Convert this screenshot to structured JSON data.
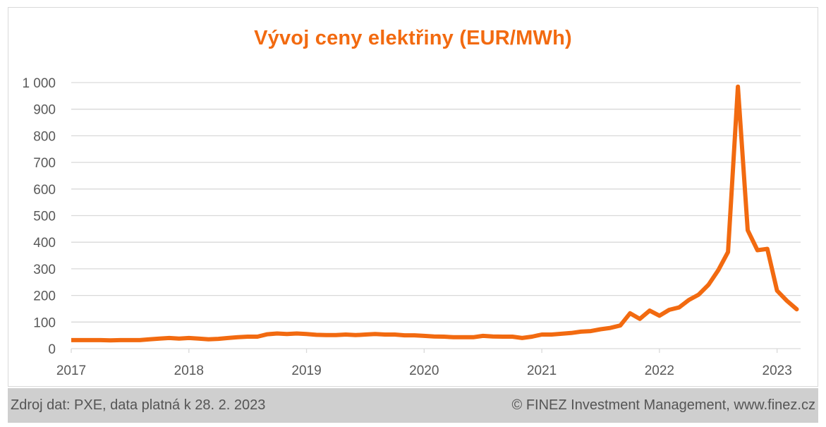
{
  "chart_data": {
    "type": "line",
    "title": "Vývoj ceny elektřiny (EUR/MWh)",
    "xlabel": "",
    "ylabel": "",
    "xlim": [
      2017,
      2023.2
    ],
    "ylim": [
      0,
      1000
    ],
    "y_ticks": [
      0,
      100,
      200,
      300,
      400,
      500,
      600,
      700,
      800,
      900,
      1000
    ],
    "y_tick_labels": [
      "0",
      "100",
      "200",
      "300",
      "400",
      "500",
      "600",
      "700",
      "800",
      "900",
      "1 000"
    ],
    "x_ticks": [
      2017,
      2018,
      2019,
      2020,
      2021,
      2022,
      2023
    ],
    "x_tick_labels": [
      "2017",
      "2018",
      "2019",
      "2020",
      "2021",
      "2022",
      "2023"
    ],
    "grid": true,
    "legend": "none",
    "color": "#f26a10",
    "series": [
      {
        "x": [
          2017.0,
          2017.083,
          2017.167,
          2017.25,
          2017.333,
          2017.417,
          2017.5,
          2017.583,
          2017.667,
          2017.75,
          2017.833,
          2017.917,
          2018.0,
          2018.083,
          2018.167,
          2018.25,
          2018.333,
          2018.417,
          2018.5,
          2018.583,
          2018.667,
          2018.75,
          2018.833,
          2018.917,
          2019.0,
          2019.083,
          2019.167,
          2019.25,
          2019.333,
          2019.417,
          2019.5,
          2019.583,
          2019.667,
          2019.75,
          2019.833,
          2019.917,
          2020.0,
          2020.083,
          2020.167,
          2020.25,
          2020.333,
          2020.417,
          2020.5,
          2020.583,
          2020.667,
          2020.75,
          2020.833,
          2020.917,
          2021.0,
          2021.083,
          2021.167,
          2021.25,
          2021.333,
          2021.417,
          2021.5,
          2021.583,
          2021.667,
          2021.75,
          2021.833,
          2021.917,
          2022.0,
          2022.083,
          2022.167,
          2022.25,
          2022.333,
          2022.417,
          2022.5,
          2022.583,
          2022.667,
          2022.75,
          2022.833,
          2022.917,
          2023.0,
          2023.083,
          2023.167
        ],
        "values": [
          32,
          32,
          32,
          32,
          31,
          32,
          32,
          32,
          35,
          38,
          40,
          38,
          40,
          38,
          35,
          37,
          40,
          43,
          45,
          45,
          54,
          57,
          55,
          57,
          55,
          52,
          51,
          51,
          53,
          51,
          53,
          55,
          53,
          53,
          50,
          50,
          48,
          46,
          45,
          43,
          43,
          43,
          48,
          46,
          45,
          45,
          40,
          45,
          53,
          53,
          56,
          59,
          64,
          66,
          73,
          78,
          87,
          133,
          112,
          143,
          124,
          146,
          155,
          183,
          203,
          240,
          295,
          363,
          985,
          445,
          370,
          375,
          218,
          180,
          148
        ]
      }
    ]
  },
  "footer": {
    "source": "Zdroj dat: PXE, data platná k 28. 2. 2023",
    "copyright": "© FINEZ Investment Management, www.finez.cz"
  }
}
